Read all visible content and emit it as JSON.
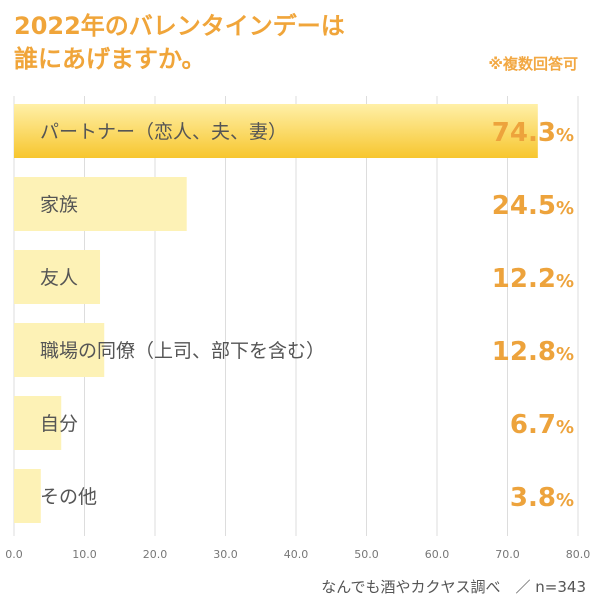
{
  "title_line1": "2022年のバレンタインデーは",
  "title_line2": "誰にあげますか。",
  "note": "※複数回答可",
  "source": "なんでも酒やカクヤス調べ　／ n=343",
  "colors": {
    "title": "#f0a53a",
    "value": "#eda33c",
    "bar_top": "#fde48a",
    "bar_top_dark": "#f6c733",
    "bar": "#fdf2b6",
    "grid": "#dddddd",
    "label": "#555555"
  },
  "chart_data": {
    "type": "bar",
    "orientation": "horizontal",
    "categories": [
      "パートナー（恋人、夫、妻）",
      "家族",
      "友人",
      "職場の同僚（上司、部下を含む）",
      "自分",
      "その他"
    ],
    "values": [
      74.3,
      24.5,
      12.2,
      12.8,
      6.7,
      3.8
    ],
    "value_labels": [
      "74.3",
      "24.5",
      "12.2",
      "12.8",
      "6.7",
      "3.8"
    ],
    "value_unit": "%",
    "xlim": [
      0,
      80
    ],
    "xticks": [
      "0.0",
      "10.0",
      "20.0",
      "30.0",
      "40.0",
      "50.0",
      "60.0",
      "70.0",
      "80.0"
    ],
    "grid": true
  }
}
